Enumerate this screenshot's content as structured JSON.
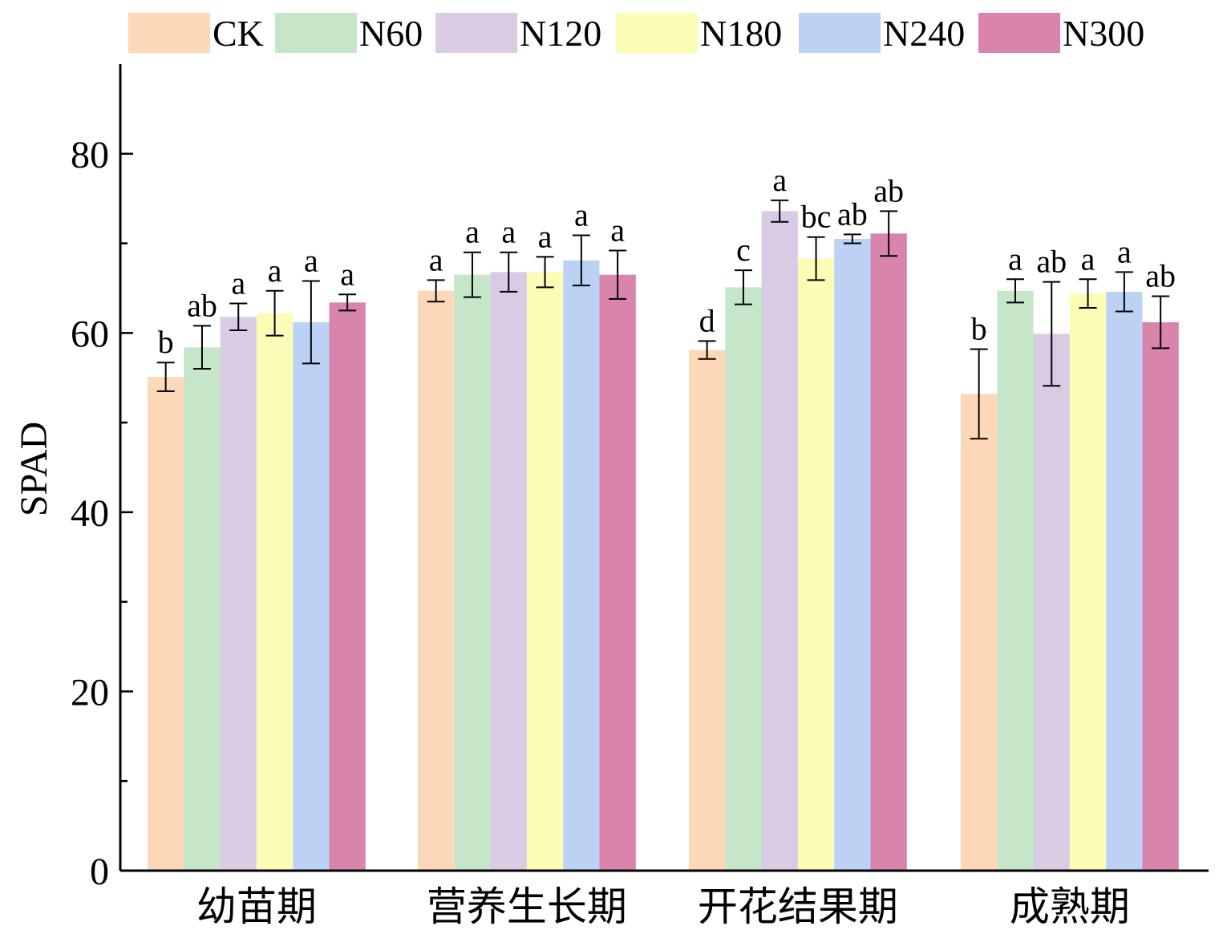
{
  "chart_data": {
    "type": "bar",
    "title": "",
    "xlabel": "",
    "ylabel": "SPAD",
    "ylim": [
      0,
      90
    ],
    "yticks": [
      0,
      20,
      40,
      60,
      80
    ],
    "ytick_labels": [
      "0",
      "20",
      "40",
      "60",
      "80"
    ],
    "grid": false,
    "legend_position": "top",
    "categories": [
      "幼苗期",
      "营养生长期",
      "开花结果期",
      "成熟期"
    ],
    "series": [
      {
        "name": "CK",
        "color": "#FDD8B8",
        "values": [
          55.1,
          64.7,
          58.1,
          53.2
        ],
        "errors": [
          1.6,
          1.2,
          1.0,
          5.0
        ],
        "letters": [
          "b",
          "a",
          "d",
          "b"
        ]
      },
      {
        "name": "N60",
        "color": "#C6E6C9",
        "values": [
          58.4,
          66.5,
          65.1,
          64.7
        ],
        "errors": [
          2.4,
          2.5,
          1.9,
          1.3
        ],
        "letters": [
          "ab",
          "a",
          "c",
          "a"
        ]
      },
      {
        "name": "N120",
        "color": "#DACBE5",
        "values": [
          61.8,
          66.8,
          73.6,
          59.9
        ],
        "errors": [
          1.5,
          2.2,
          1.2,
          5.8
        ],
        "letters": [
          "a",
          "a",
          "a",
          "ab"
        ]
      },
      {
        "name": "N180",
        "color": "#FDFCB6",
        "values": [
          62.2,
          66.8,
          68.3,
          64.4
        ],
        "errors": [
          2.5,
          1.7,
          2.4,
          1.6
        ],
        "letters": [
          "a",
          "a",
          "bc",
          "a"
        ]
      },
      {
        "name": "N240",
        "color": "#BBD2F5",
        "values": [
          61.2,
          68.1,
          70.5,
          64.6
        ],
        "errors": [
          4.6,
          2.8,
          0.5,
          2.2
        ],
        "letters": [
          "a",
          "a",
          "ab",
          "a"
        ]
      },
      {
        "name": "N300",
        "color": "#D984AC",
        "values": [
          63.4,
          66.5,
          71.1,
          61.2
        ],
        "errors": [
          0.9,
          2.7,
          2.5,
          2.9
        ],
        "letters": [
          "a",
          "a",
          "ab",
          "ab"
        ]
      }
    ]
  }
}
